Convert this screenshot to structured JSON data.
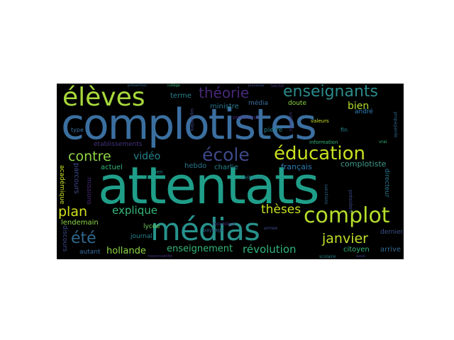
{
  "background_color": "#000000",
  "palette": {
    "yellow": "#d2e21b",
    "lime": "#8ed645",
    "green": "#35b779",
    "teal": "#1f9e89",
    "cyan": "#26828e",
    "blue": "#31688e",
    "navy": "#3e4989",
    "purple": "#482878",
    "dark": "#440154"
  },
  "words": [
    {
      "text": "attentats",
      "color": "#1f9e89"
    },
    {
      "text": "complotistes",
      "color": "#3b6fa0"
    },
    {
      "text": "médias",
      "color": "#27928c"
    },
    {
      "text": "élèves",
      "color": "#a8d93b"
    },
    {
      "text": "complot",
      "color": "#b5de2b"
    },
    {
      "text": "éducation",
      "color": "#c8e020"
    },
    {
      "text": "école",
      "color": "#3e4989"
    },
    {
      "text": "enseignants",
      "color": "#2c8a8a"
    },
    {
      "text": "théorie",
      "color": "#482878"
    },
    {
      "text": "contre",
      "color": "#8ed645"
    },
    {
      "text": "plan",
      "color": "#d2e21b"
    },
    {
      "text": "été",
      "color": "#31688e"
    },
    {
      "text": "janvier",
      "color": "#c3df2a"
    },
    {
      "text": "thèses",
      "color": "#c8e020"
    },
    {
      "text": "explique",
      "color": "#35b779"
    },
    {
      "text": "vidéo",
      "color": "#26828e"
    },
    {
      "text": "hollande",
      "color": "#8ed645"
    },
    {
      "text": "enseignement",
      "color": "#35b779"
    },
    {
      "text": "révolution",
      "color": "#2fb47c"
    },
    {
      "text": "bien",
      "color": "#b5de2b"
    },
    {
      "text": "complotiste",
      "color": "#3e9b8a"
    },
    {
      "text": "français",
      "color": "#2c7fb8"
    },
    {
      "text": "citoyen",
      "color": "#35b779"
    },
    {
      "text": "arrive",
      "color": "#31688e"
    },
    {
      "text": "dernier",
      "color": "#3b528b"
    },
    {
      "text": "ministre",
      "color": "#2a788e"
    },
    {
      "text": "terme",
      "color": "#26828e"
    },
    {
      "text": "média",
      "color": "#3b6fa0"
    },
    {
      "text": "pierre",
      "color": "#26828e"
    },
    {
      "text": "doute",
      "color": "#8ed645"
    },
    {
      "text": "andré",
      "color": "#2c7fb8"
    },
    {
      "text": "actuel",
      "color": "#35b779"
    },
    {
      "text": "charlie",
      "color": "#26828e"
    },
    {
      "text": "hebdo",
      "color": "#2a788e"
    },
    {
      "text": "lycée",
      "color": "#6cce59"
    },
    {
      "text": "journal",
      "color": "#26828e"
    },
    {
      "text": "lendemain",
      "color": "#8ed645"
    },
    {
      "text": "autant",
      "color": "#3b6fa0"
    },
    {
      "text": "établissements",
      "color": "#46337e"
    },
    {
      "text": "parcours",
      "color": "#3e4989"
    },
    {
      "text": "missions",
      "color": "#482878"
    },
    {
      "text": "directeur",
      "color": "#2a788e"
    },
    {
      "text": "discours",
      "color": "#3e4989"
    },
    {
      "text": "académique",
      "color": "#c8e020"
    },
    {
      "text": "belkacem",
      "color": "#2a788e"
    },
    {
      "text": "information",
      "color": "#35b779"
    },
    {
      "text": "président",
      "color": "#3e4989"
    },
    {
      "text": "type",
      "color": "#3b6fa0"
    },
    {
      "text": "fin",
      "color": "#26828e"
    },
    {
      "text": "rien",
      "color": "#26828e"
    },
    {
      "text": "paysage",
      "color": "#31688e"
    },
    {
      "text": "professeur",
      "color": "#482878"
    },
    {
      "text": "valeurs",
      "color": "#c8e020"
    },
    {
      "text": "solidarité",
      "color": "#46337e"
    },
    {
      "text": "septembre",
      "color": "#3e4989"
    },
    {
      "text": "république",
      "color": "#46337e"
    },
    {
      "text": "armée",
      "color": "#3e4989"
    },
    {
      "text": "sanctions",
      "color": "#31688e"
    },
    {
      "text": "scolaire",
      "color": "#26828e"
    },
    {
      "text": "vrai",
      "color": "#35b779"
    },
    {
      "text": "collège",
      "color": "#35b779"
    },
    {
      "text": "jeunesse",
      "color": "#3e4989"
    },
    {
      "text": "laïcité",
      "color": "#46337e"
    },
    {
      "text": "prévention",
      "color": "#31688e"
    },
    {
      "text": "responsabilité",
      "color": "#46337e"
    },
    {
      "text": "aussi",
      "color": "#3e4989"
    },
    {
      "text": "propagande",
      "color": "#31688e"
    }
  ]
}
